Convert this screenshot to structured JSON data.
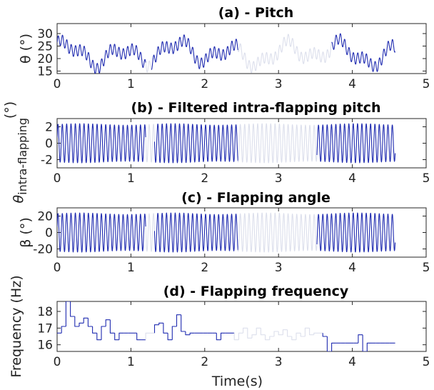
{
  "colors": {
    "active": "#1f2bb0",
    "faded": "#dcdfec",
    "axis": "#262626"
  },
  "chart_data": [
    {
      "type": "line",
      "title": "(a) - Pitch",
      "ylabel": "θ (°)",
      "xlabel": "",
      "xlim": [
        0,
        5
      ],
      "ylim": [
        14,
        34
      ],
      "xticks": [
        "0",
        "1",
        "2",
        "3",
        "4",
        "5"
      ],
      "yticks": [
        "15",
        "20",
        "25",
        "30"
      ],
      "signal": {
        "kind": "pitch",
        "duration": 4.58,
        "mean": 22,
        "flap_amplitude": 2.2,
        "freq_hz": 17
      },
      "segments": [
        {
          "state": "active",
          "x_range": [
            0,
            1.2
          ]
        },
        {
          "state": "faded",
          "x_range": [
            1.2,
            1.28
          ]
        },
        {
          "state": "active",
          "x_range": [
            1.28,
            2.45
          ]
        },
        {
          "state": "faded",
          "x_range": [
            2.45,
            3.72
          ]
        },
        {
          "state": "active",
          "x_range": [
            3.72,
            4.58
          ]
        }
      ]
    },
    {
      "type": "line",
      "title": "(b) - Filtered intra-flapping pitch",
      "ylabel": "θ",
      "ylabel_sub": "intra-flapping",
      "ylabel_unit": "(°)",
      "xlabel": "",
      "xlim": [
        0,
        5
      ],
      "ylim": [
        -3,
        3
      ],
      "xticks": [
        "0",
        "1",
        "2",
        "3",
        "4",
        "5"
      ],
      "yticks": [
        "2",
        "0",
        "-2"
      ],
      "signal": {
        "kind": "oscillation",
        "duration": 4.58,
        "amplitude": 2.3,
        "freq_hz": 17
      },
      "segments": [
        {
          "state": "active",
          "x_range": [
            0,
            1.2
          ]
        },
        {
          "state": "faded",
          "x_range": [
            1.2,
            1.32
          ]
        },
        {
          "state": "active",
          "x_range": [
            1.32,
            2.45
          ]
        },
        {
          "state": "faded",
          "x_range": [
            2.45,
            3.52
          ]
        },
        {
          "state": "active",
          "x_range": [
            3.52,
            4.58
          ]
        }
      ]
    },
    {
      "type": "line",
      "title": "(c) - Flapping angle",
      "ylabel": "β (°)",
      "xlabel": "",
      "xlim": [
        0,
        5
      ],
      "ylim": [
        -30,
        30
      ],
      "xticks": [
        "0",
        "1",
        "2",
        "3",
        "4",
        "5"
      ],
      "yticks": [
        "20",
        "0",
        "-20"
      ],
      "signal": {
        "kind": "oscillation",
        "duration": 4.58,
        "amplitude": 23,
        "freq_hz": 17
      },
      "segments": [
        {
          "state": "active",
          "x_range": [
            0,
            1.2
          ]
        },
        {
          "state": "faded",
          "x_range": [
            1.2,
            1.32
          ]
        },
        {
          "state": "active",
          "x_range": [
            1.32,
            2.45
          ]
        },
        {
          "state": "faded",
          "x_range": [
            2.45,
            3.52
          ]
        },
        {
          "state": "active",
          "x_range": [
            3.52,
            4.58
          ]
        }
      ]
    },
    {
      "type": "line",
      "title": "(d) - Flapping frequency",
      "ylabel": "Frequency (Hz)",
      "xlabel": "Time(s)",
      "xlim": [
        0,
        5
      ],
      "ylim": [
        15.6,
        18.6
      ],
      "xticks": [
        "0",
        "1",
        "2",
        "3",
        "4",
        "5"
      ],
      "yticks": [
        "18",
        "17",
        "16"
      ],
      "step_x": [
        0,
        0.06,
        0.12,
        0.18,
        0.24,
        0.3,
        0.36,
        0.42,
        0.48,
        0.54,
        0.6,
        0.66,
        0.72,
        0.78,
        0.84,
        0.9,
        0.96,
        1.02,
        1.08,
        1.14,
        1.2,
        1.26,
        1.32,
        1.38,
        1.44,
        1.5,
        1.56,
        1.62,
        1.68,
        1.74,
        1.8,
        1.86,
        1.92,
        1.98,
        2.04,
        2.1,
        2.16,
        2.22,
        2.28,
        2.34,
        2.4,
        2.46,
        2.52,
        2.58,
        2.64,
        2.7,
        2.76,
        2.82,
        2.88,
        2.94,
        3.0,
        3.06,
        3.12,
        3.18,
        3.24,
        3.3,
        3.36,
        3.42,
        3.48,
        3.54,
        3.6,
        3.66,
        3.72,
        3.78,
        3.84,
        3.9,
        3.96,
        4.02,
        4.08,
        4.14,
        4.2,
        4.26,
        4.32,
        4.38,
        4.44,
        4.5,
        4.56
      ],
      "step_y": [
        16.7,
        17.1,
        18.6,
        17.7,
        17.1,
        17.3,
        17.6,
        17.1,
        16.7,
        16.3,
        17.1,
        17.5,
        16.7,
        16.3,
        16.7,
        16.7,
        16.7,
        16.7,
        16.3,
        16.3,
        16.7,
        16.7,
        17.2,
        17.3,
        16.7,
        16.3,
        17.1,
        17.8,
        16.8,
        16.6,
        16.7,
        16.7,
        16.7,
        16.7,
        16.7,
        16.7,
        16.3,
        16.7,
        16.7,
        16.7,
        16.3,
        16.7,
        17.0,
        16.4,
        16.6,
        17.0,
        16.6,
        16.3,
        16.5,
        16.8,
        16.6,
        16.9,
        16.5,
        16.3,
        16.7,
        16.5,
        17.0,
        16.6,
        16.7,
        16.7,
        16.5,
        15.6,
        16.1,
        16.1,
        16.1,
        16.1,
        16.1,
        16.1,
        16.6,
        15.6,
        16.1,
        16.1,
        16.1,
        16.1,
        16.1,
        16.1,
        16.1
      ],
      "segments": [
        {
          "state": "active",
          "x_range": [
            0,
            1.2
          ]
        },
        {
          "state": "faded",
          "x_range": [
            1.2,
            1.32
          ]
        },
        {
          "state": "active",
          "x_range": [
            1.32,
            2.4
          ]
        },
        {
          "state": "faded",
          "x_range": [
            2.4,
            3.6
          ]
        },
        {
          "state": "active",
          "x_range": [
            3.6,
            4.58
          ]
        }
      ]
    }
  ]
}
